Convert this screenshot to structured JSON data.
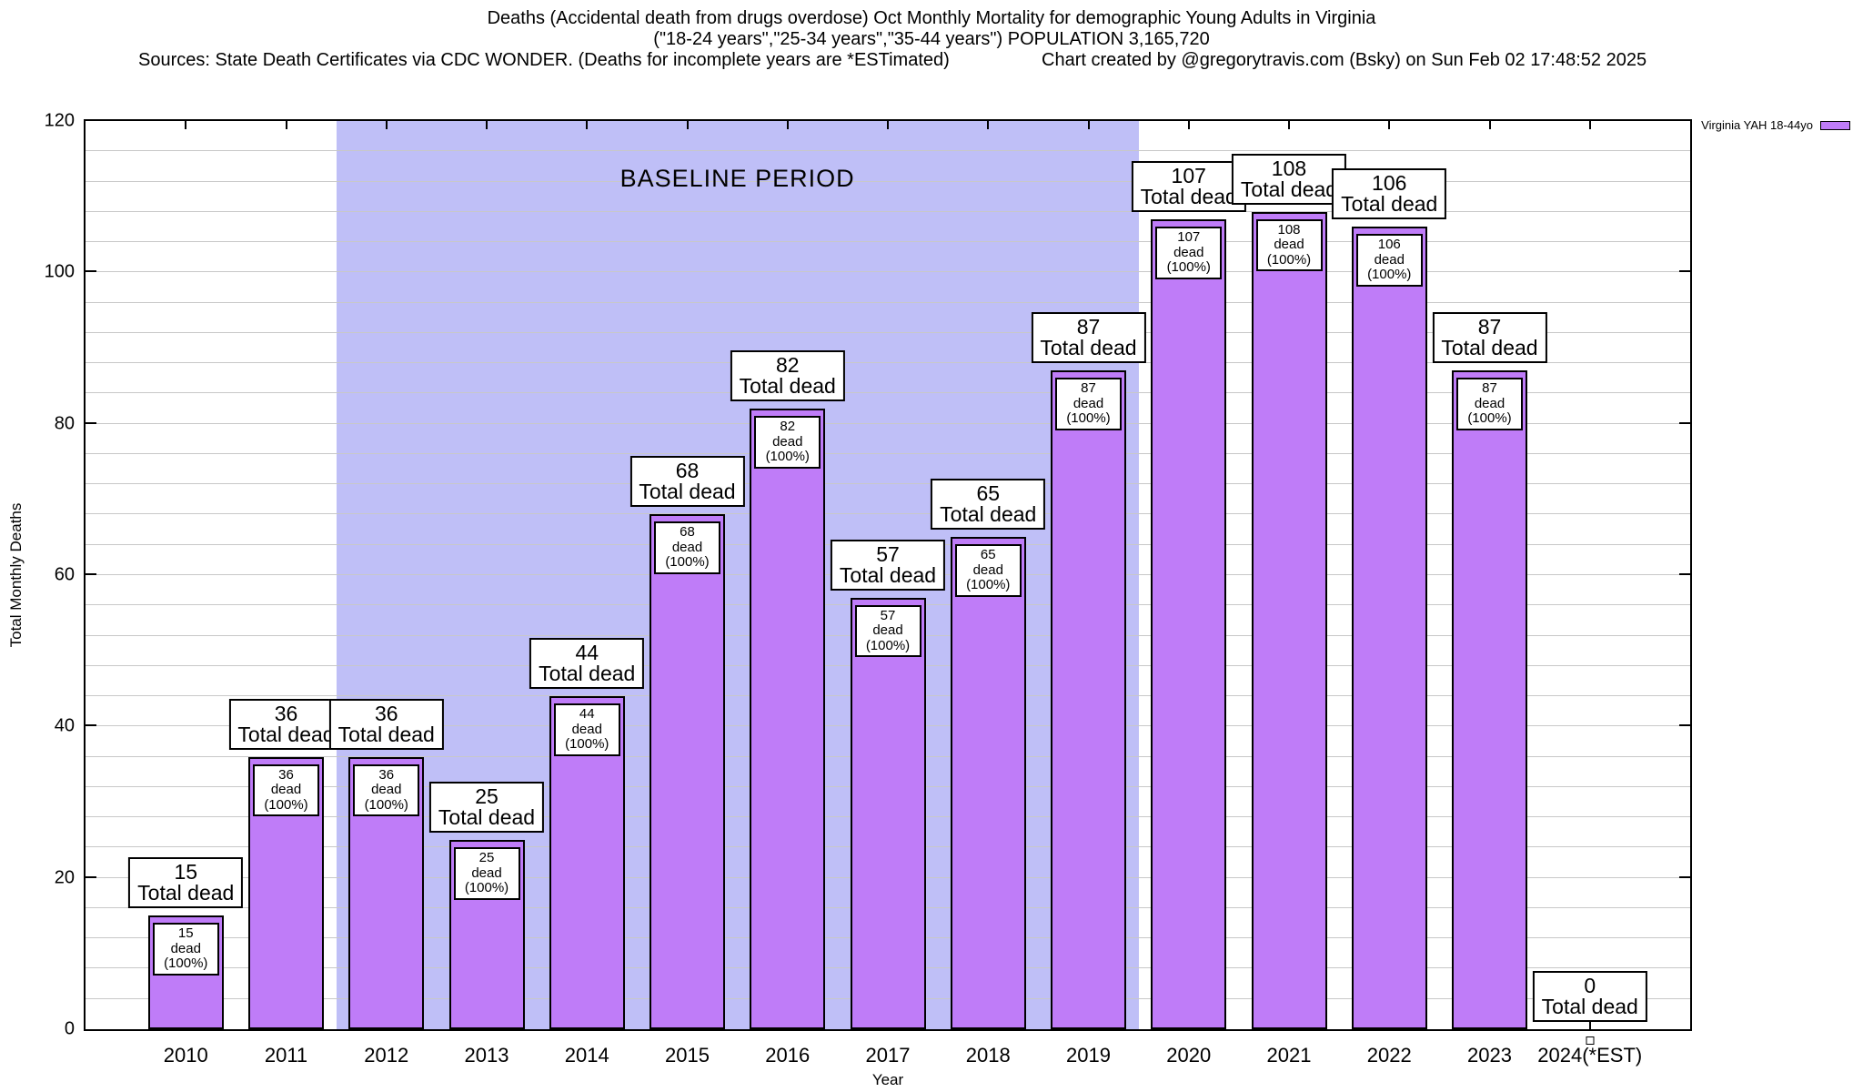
{
  "header": {
    "title_line1": "Deaths (Accidental death from drugs overdose) Oct Monthly Mortality for demographic Young Adults in Virginia",
    "title_line2": "(\"18-24 years\",\"25-34 years\",\"35-44 years\") POPULATION 3,165,720",
    "sources_line": "Sources: State Death Certificates via CDC WONDER. (Deaths for incomplete years are *ESTimated)",
    "credit_line": "Chart created by @gregorytravis.com (Bsky) on Sun Feb 02 17:48:52 2025"
  },
  "chart_data": {
    "type": "bar",
    "categories": [
      "2010",
      "2011",
      "2012",
      "2013",
      "2014",
      "2015",
      "2016",
      "2017",
      "2018",
      "2019",
      "2020",
      "2021",
      "2022",
      "2023",
      "2024(*EST)"
    ],
    "values": [
      15,
      36,
      36,
      25,
      44,
      68,
      82,
      57,
      65,
      87,
      107,
      108,
      106,
      87,
      0
    ],
    "series": [
      {
        "name": "Virginia YAH 18-44yo"
      }
    ],
    "xlabel": "Year",
    "ylabel": "Total Monthly Deaths",
    "ylim": [
      0,
      120
    ],
    "yticks": [
      0,
      20,
      40,
      60,
      80,
      100,
      120
    ],
    "minor_grid_step": 4,
    "grid": true,
    "legend_position": "top-right",
    "legend_label": "Virginia YAH 18-44yo",
    "bar_total_label_suffix": "Total dead",
    "bar_inner_label_suffix": "dead (100%)",
    "baseline_band": {
      "label": "BASELINE PERIOD",
      "start_after_category": "2011",
      "end_after_category": "2019"
    },
    "zero_marker_category": "2024(*EST)",
    "colors": {
      "bar_fill": "#bf7cf8",
      "baseline_band_fill": "#bfbff7",
      "gridline": "#c8c8c8",
      "axis": "#000000"
    }
  }
}
